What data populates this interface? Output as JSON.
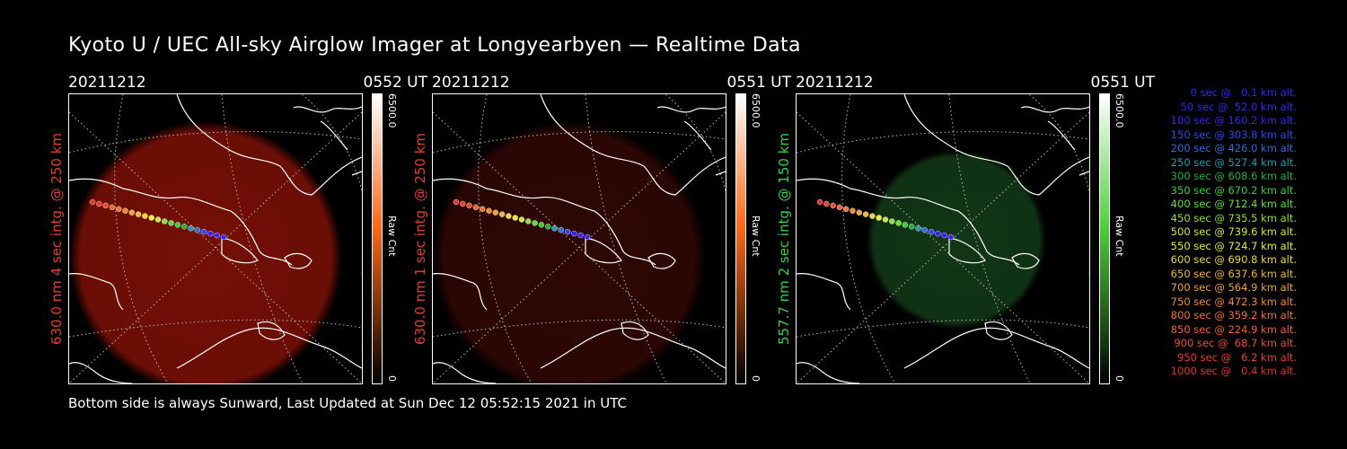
{
  "title": "Kyoto U / UEC All-sky Airglow Imager at Longyearbyen — Realtime Data",
  "footer": "Bottom side is always Sunward, Last Updated at Sun Dec 12 05:52:15 2021 in UTC",
  "colors": {
    "red_label": "#e0402f",
    "green_label": "#36d04b"
  },
  "panels": [
    {
      "date": "20211212",
      "time": "0552 UT",
      "ylabel": "630.0 nm 4 sec intg. @ 250 km",
      "label_color": "#e0402f",
      "cbar_max": "6500.0",
      "cbar_min": "0",
      "cbar_unit": "Raw Cnt",
      "glow": "#8a1208",
      "glow_opacity": 0.85,
      "cbar_top": "#ff6a1a"
    },
    {
      "date": "20211212",
      "time": "0551 UT",
      "ylabel": "630.0 nm 1 sec intg. @ 250 km",
      "label_color": "#e0402f",
      "cbar_max": "6500.0",
      "cbar_min": "0",
      "cbar_unit": "Raw Cnt",
      "glow": "#3a0906",
      "glow_opacity": 0.8,
      "cbar_top": "#ff6a1a"
    },
    {
      "date": "20211212",
      "time": "0551 UT",
      "ylabel": "557.7 nm 2 sec intg. @ 150 km",
      "label_color": "#36d04b",
      "cbar_max": "6500.0",
      "cbar_min": "0",
      "cbar_unit": "Raw Cnt",
      "glow": "#15401a",
      "glow_opacity": 0.85,
      "cbar_top": "#4fd33a"
    }
  ],
  "legend": [
    {
      "text": "   0 sec @   0.1 km alt.",
      "color": "#3a22ff"
    },
    {
      "text": "  50 sec @  52.0 km alt.",
      "color": "#3a22ff"
    },
    {
      "text": " 100 sec @ 160.2 km alt.",
      "color": "#3a22ff"
    },
    {
      "text": " 150 sec @ 303.8 km alt.",
      "color": "#2b45ff"
    },
    {
      "text": " 200 sec @ 426.0 km alt.",
      "color": "#2a6ee0"
    },
    {
      "text": " 250 sec @ 527.4 km alt.",
      "color": "#1f9bb3"
    },
    {
      "text": " 300 sec @ 608.6 km alt.",
      "color": "#22b23a"
    },
    {
      "text": " 350 sec @ 670.2 km alt.",
      "color": "#36d22f"
    },
    {
      "text": " 400 sec @ 712.4 km alt.",
      "color": "#5fe03a"
    },
    {
      "text": " 450 sec @ 735.5 km alt.",
      "color": "#8ee03c"
    },
    {
      "text": " 500 sec @ 739.6 km alt.",
      "color": "#c8ea3b"
    },
    {
      "text": " 550 sec @ 724.7 km alt.",
      "color": "#e8ee3a"
    },
    {
      "text": " 600 sec @ 690.8 km alt.",
      "color": "#f0d63a"
    },
    {
      "text": " 650 sec @ 637.6 km alt.",
      "color": "#f0b83a"
    },
    {
      "text": " 700 sec @ 564.9 km alt.",
      "color": "#f0a23a"
    },
    {
      "text": " 750 sec @ 472.3 km alt.",
      "color": "#f08a35"
    },
    {
      "text": " 800 sec @ 359.2 km alt.",
      "color": "#ee7432"
    },
    {
      "text": " 850 sec @ 224.9 km alt.",
      "color": "#ec6230"
    },
    {
      "text": " 900 sec @  68.7 km alt.",
      "color": "#ea4e2c"
    },
    {
      "text": " 950 sec @   6.2 km alt.",
      "color": "#e8402a"
    },
    {
      "text": "1000 sec @   0.4 km alt.",
      "color": "#e63228"
    }
  ]
}
